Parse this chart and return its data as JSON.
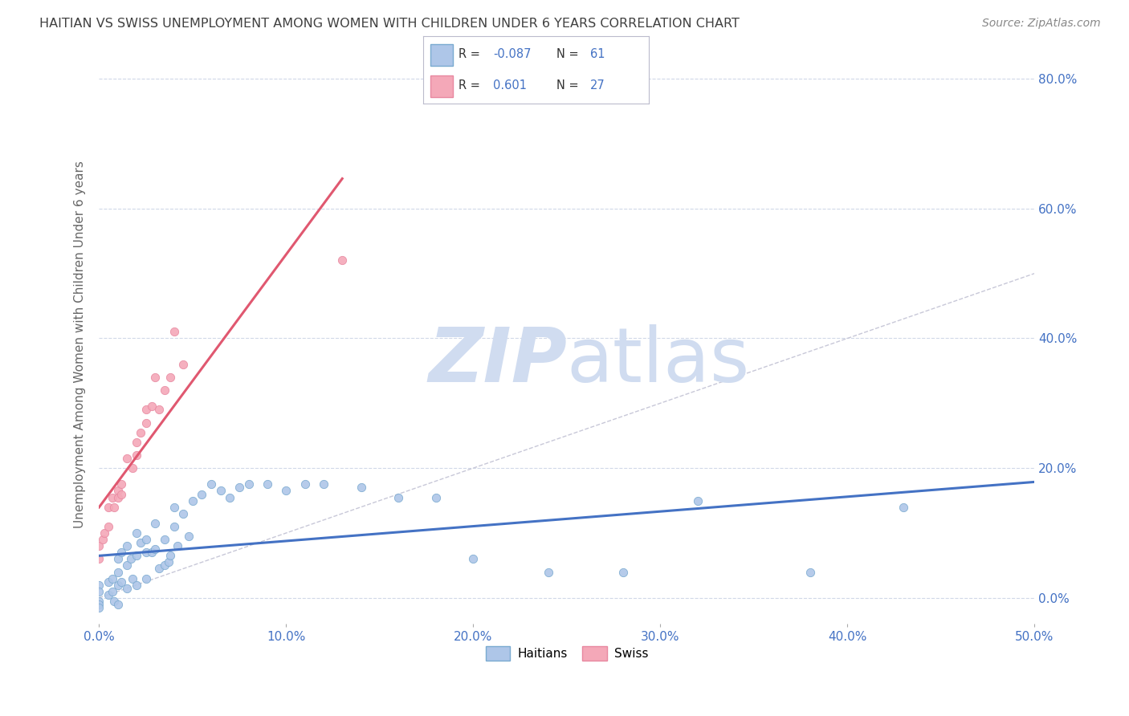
{
  "title": "HAITIAN VS SWISS UNEMPLOYMENT AMONG WOMEN WITH CHILDREN UNDER 6 YEARS CORRELATION CHART",
  "source": "Source: ZipAtlas.com",
  "ylabel": "Unemployment Among Women with Children Under 6 years",
  "xlim": [
    0.0,
    0.5
  ],
  "ylim": [
    -0.04,
    0.82
  ],
  "ytick_vals": [
    0.0,
    0.2,
    0.4,
    0.6,
    0.8
  ],
  "ytick_labels": [
    "0.0%",
    "20.0%",
    "40.0%",
    "60.0%",
    "80.0%"
  ],
  "xtick_vals": [
    0.0,
    0.1,
    0.2,
    0.3,
    0.4,
    0.5
  ],
  "xtick_labels": [
    "0.0%",
    "10.0%",
    "20.0%",
    "30.0%",
    "40.0%",
    "50.0%"
  ],
  "haitian_x": [
    0.0,
    0.0,
    0.0,
    0.0,
    0.0,
    0.005,
    0.005,
    0.007,
    0.007,
    0.008,
    0.01,
    0.01,
    0.01,
    0.01,
    0.012,
    0.012,
    0.015,
    0.015,
    0.015,
    0.017,
    0.018,
    0.02,
    0.02,
    0.02,
    0.022,
    0.025,
    0.025,
    0.025,
    0.028,
    0.03,
    0.03,
    0.032,
    0.035,
    0.035,
    0.037,
    0.038,
    0.04,
    0.04,
    0.042,
    0.045,
    0.048,
    0.05,
    0.055,
    0.06,
    0.065,
    0.07,
    0.075,
    0.08,
    0.09,
    0.1,
    0.11,
    0.12,
    0.14,
    0.16,
    0.18,
    0.2,
    0.24,
    0.28,
    0.32,
    0.38,
    0.43
  ],
  "haitian_y": [
    0.02,
    0.01,
    -0.005,
    -0.01,
    -0.015,
    0.025,
    0.005,
    0.03,
    0.01,
    -0.005,
    0.06,
    0.04,
    0.02,
    -0.01,
    0.07,
    0.025,
    0.08,
    0.05,
    0.015,
    0.06,
    0.03,
    0.1,
    0.065,
    0.02,
    0.085,
    0.09,
    0.07,
    0.03,
    0.07,
    0.115,
    0.075,
    0.045,
    0.09,
    0.05,
    0.055,
    0.065,
    0.14,
    0.11,
    0.08,
    0.13,
    0.095,
    0.15,
    0.16,
    0.175,
    0.165,
    0.155,
    0.17,
    0.175,
    0.175,
    0.165,
    0.175,
    0.175,
    0.17,
    0.155,
    0.155,
    0.06,
    0.04,
    0.04,
    0.15,
    0.04,
    0.14
  ],
  "swiss_x": [
    0.0,
    0.0,
    0.002,
    0.003,
    0.005,
    0.005,
    0.007,
    0.008,
    0.01,
    0.01,
    0.012,
    0.012,
    0.015,
    0.018,
    0.02,
    0.02,
    0.022,
    0.025,
    0.025,
    0.028,
    0.03,
    0.032,
    0.035,
    0.038,
    0.04,
    0.045,
    0.13
  ],
  "swiss_y": [
    0.08,
    0.06,
    0.09,
    0.1,
    0.14,
    0.11,
    0.155,
    0.14,
    0.165,
    0.155,
    0.175,
    0.16,
    0.215,
    0.2,
    0.24,
    0.22,
    0.255,
    0.29,
    0.27,
    0.295,
    0.34,
    0.29,
    0.32,
    0.34,
    0.41,
    0.36,
    0.52
  ],
  "haitian_line_color": "#4472c4",
  "swiss_line_color": "#e05870",
  "diagonal_line_color": "#c8c8d8",
  "background_color": "#ffffff",
  "grid_color": "#d0d8e8",
  "watermark_zip": "ZIP",
  "watermark_atlas": "atlas",
  "watermark_color": "#d0dcf0",
  "title_color": "#404040",
  "axis_color": "#4472c4",
  "scatter_haitian_color": "#aec6e8",
  "scatter_swiss_color": "#f4a8b8",
  "scatter_haitian_edge": "#7aaad0",
  "scatter_swiss_edge": "#e888a0",
  "legend_R_haitian": "-0.087",
  "legend_N_haitian": "61",
  "legend_R_swiss": "0.601",
  "legend_N_swiss": "27"
}
